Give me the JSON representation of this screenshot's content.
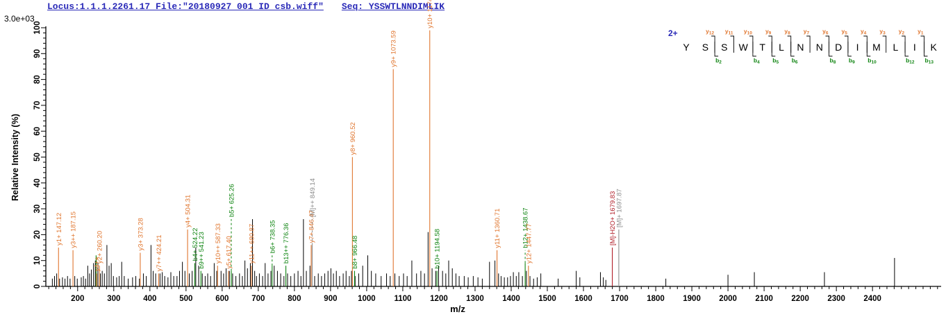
{
  "header": {
    "locus_file": "Locus:1.1.1.2261.17 File:\"20180927_001_ID_csb.wiff\"",
    "seq_label": "Seq: YSSWTLNNDIMLIK"
  },
  "colors": {
    "y_ion": "#e0762f",
    "b_ion": "#0e8410",
    "precursor": "#8c8c8c",
    "precursor_loss": "#b01e28",
    "header_blue": "#2929b8",
    "peak_black": "#000000",
    "axis": "#000000"
  },
  "peptide_panel": {
    "charge": "2+",
    "residues": [
      "Y",
      "S",
      "S",
      "W",
      "T",
      "L",
      "N",
      "N",
      "D",
      "I",
      "M",
      "L",
      "I",
      "K"
    ],
    "y_ions": [
      {
        "label": "y",
        "sub": "12",
        "after": 2
      },
      {
        "label": "y",
        "sub": "11",
        "after": 3
      },
      {
        "label": "y",
        "sub": "10",
        "after": 4
      },
      {
        "label": "y",
        "sub": "9",
        "after": 5
      },
      {
        "label": "y",
        "sub": "8",
        "after": 6
      },
      {
        "label": "y",
        "sub": "7",
        "after": 7
      },
      {
        "label": "y",
        "sub": "6",
        "after": 8
      },
      {
        "label": "y",
        "sub": "5",
        "after": 9
      },
      {
        "label": "y",
        "sub": "4",
        "after": 10
      },
      {
        "label": "y",
        "sub": "3",
        "after": 11
      },
      {
        "label": "y",
        "sub": "2",
        "after": 12
      },
      {
        "label": "y",
        "sub": "1",
        "after": 13
      }
    ],
    "b_ions": [
      {
        "label": "b",
        "sub": "2",
        "after": 2
      },
      {
        "label": "b",
        "sub": "4",
        "after": 4
      },
      {
        "label": "b",
        "sub": "5",
        "after": 5
      },
      {
        "label": "b",
        "sub": "6",
        "after": 6
      },
      {
        "label": "b",
        "sub": "8",
        "after": 8
      },
      {
        "label": "b",
        "sub": "9",
        "after": 9
      },
      {
        "label": "b",
        "sub": "10",
        "after": 10
      },
      {
        "label": "b",
        "sub": "12",
        "after": 12
      },
      {
        "label": "b",
        "sub": "13",
        "after": 13
      }
    ]
  },
  "chart_data": {
    "type": "bar",
    "title": "",
    "xlabel": "m/z",
    "ylabel": "Relative  Intensity (%)",
    "intensity_scale_label": "3.0e+03",
    "x_range": [
      112,
      2590
    ],
    "ylim": [
      0,
      100
    ],
    "x_major_tick_start": 200,
    "x_major_tick_end": 2400,
    "x_major_tick_step": 100,
    "x_minor_tick_step": 20,
    "y_major_tick_step": 10,
    "y_minor_tick_step": 2,
    "grid": "off",
    "labeled_peaks": [
      {
        "label": "y1+ 147.12",
        "mz": 147.12,
        "h": 15,
        "c": "y_ion"
      },
      {
        "label": "y3++ 187.15",
        "mz": 187.15,
        "h": 14,
        "c": "y_ion"
      },
      {
        "label": "",
        "mz": 251.1,
        "h": 12,
        "c": "b_ion"
      },
      {
        "label": "y4++",
        "mz": 252.64,
        "h": 5,
        "c": "y_ion"
      },
      {
        "label": "y2+ 260.20",
        "mz": 260.2,
        "h": 8,
        "c": "y_ion"
      },
      {
        "label": "y3+ 373.28",
        "mz": 373.28,
        "h": 13,
        "c": "y_ion"
      },
      {
        "label": "y7++ 424.21",
        "mz": 424.21,
        "h": 5,
        "c": "y_ion"
      },
      {
        "label": "y4+ 504.31",
        "mz": 504.31,
        "h": 22,
        "c": "y_ion"
      },
      {
        "label": "b4+ 524.22",
        "mz": 524.22,
        "h": 9,
        "c": "b_ion"
      },
      {
        "label": "b9++ 541.23",
        "mz": 541.23,
        "h": 6,
        "c": "b_ion"
      },
      {
        "label": "y10++ 587.33",
        "mz": 587.33,
        "h": 8,
        "c": "y_ion"
      },
      {
        "label": "y5+ 617.40",
        "mz": 617.4,
        "h": 6,
        "c": "y_ion"
      },
      {
        "label": "b5+ 625.26",
        "mz": 625.26,
        "h": 6,
        "th": 26,
        "c": "b_ion"
      },
      {
        "label": "y11++ 680.87",
        "mz": 680.87,
        "h": 8,
        "c": "y_ion"
      },
      {
        "label": "b6+ 738.35",
        "mz": 738.35,
        "h": 8,
        "th": 12,
        "c": "b_ion"
      },
      {
        "label": "b13++ 776.36",
        "mz": 776.36,
        "h": 8,
        "c": "b_ion"
      },
      {
        "label": "y7+ 846.47",
        "mz": 846.47,
        "h": 16,
        "c": "y_ion"
      },
      {
        "label": "[M]++ 849.14",
        "mz": 849.14,
        "h": 16,
        "th": 26,
        "c": "precursor"
      },
      {
        "label": "y8+ 960.52",
        "mz": 960.52,
        "h": 50,
        "c": "y_ion"
      },
      {
        "label": "b8+ 966.48",
        "mz": 966.48,
        "h": 6,
        "c": "b_ion"
      },
      {
        "label": "y9+ 1073.59",
        "mz": 1073.59,
        "h": 84,
        "c": "y_ion"
      },
      {
        "label": "y10+ 1174.6",
        "mz": 1174.6,
        "h": 99,
        "c": "y_ion"
      },
      {
        "label": "b10+ 1194.58",
        "mz": 1194.58,
        "h": 6,
        "c": "b_ion"
      },
      {
        "label": "y11+ 1360.71",
        "mz": 1360.71,
        "h": 14,
        "c": "y_ion"
      },
      {
        "label": "b12+ 1438.67",
        "mz": 1438.67,
        "h": 9,
        "th": 14,
        "c": "b_ion"
      },
      {
        "label": "y12+ 1447.77",
        "mz": 1447.77,
        "h": 8,
        "c": "y_ion"
      },
      {
        "label": "[M]-H2O+ 1679.83",
        "mz": 1679.83,
        "h": 15,
        "c": "precursor_loss"
      },
      {
        "label": "[M]+ 1697.87",
        "mz": 1697.87,
        "h": 22,
        "c": "precursor"
      }
    ],
    "unlabeled_peaks": [
      [
        130,
        3
      ],
      [
        136,
        4
      ],
      [
        142,
        5
      ],
      [
        150,
        3
      ],
      [
        158,
        3.5
      ],
      [
        165,
        3
      ],
      [
        172,
        4
      ],
      [
        179,
        3
      ],
      [
        192,
        4
      ],
      [
        199,
        3
      ],
      [
        210,
        3.5
      ],
      [
        216,
        4
      ],
      [
        222,
        3
      ],
      [
        228,
        8
      ],
      [
        233,
        5
      ],
      [
        238,
        6.5
      ],
      [
        244,
        9
      ],
      [
        249,
        10
      ],
      [
        256,
        9
      ],
      [
        263,
        5
      ],
      [
        268,
        6
      ],
      [
        274,
        5
      ],
      [
        281,
        16
      ],
      [
        287,
        8
      ],
      [
        293,
        9
      ],
      [
        299,
        4
      ],
      [
        308,
        3.5
      ],
      [
        315,
        4
      ],
      [
        322,
        9.5
      ],
      [
        329,
        4
      ],
      [
        340,
        3
      ],
      [
        352,
        3.5
      ],
      [
        361,
        4
      ],
      [
        371,
        3
      ],
      [
        382,
        5
      ],
      [
        390,
        4
      ],
      [
        403,
        16
      ],
      [
        409,
        6
      ],
      [
        416,
        5
      ],
      [
        428,
        5
      ],
      [
        434,
        5.5
      ],
      [
        441,
        4
      ],
      [
        450,
        3.5
      ],
      [
        458,
        5.5
      ],
      [
        466,
        4
      ],
      [
        475,
        4
      ],
      [
        482,
        6
      ],
      [
        490,
        9.5
      ],
      [
        497,
        6
      ],
      [
        509,
        5
      ],
      [
        517,
        6
      ],
      [
        527,
        15
      ],
      [
        535,
        8
      ],
      [
        545,
        5
      ],
      [
        553,
        4
      ],
      [
        560,
        5
      ],
      [
        568,
        4
      ],
      [
        578,
        9
      ],
      [
        585,
        6
      ],
      [
        597,
        6
      ],
      [
        604,
        5
      ],
      [
        611,
        7
      ],
      [
        620,
        6
      ],
      [
        629,
        5
      ],
      [
        638,
        4
      ],
      [
        648,
        5
      ],
      [
        656,
        4
      ],
      [
        663,
        10
      ],
      [
        670,
        7
      ],
      [
        678,
        9
      ],
      [
        684,
        26
      ],
      [
        690,
        6
      ],
      [
        695,
        4
      ],
      [
        703,
        5
      ],
      [
        712,
        4
      ],
      [
        719,
        9
      ],
      [
        727,
        5
      ],
      [
        735,
        6
      ],
      [
        744,
        8
      ],
      [
        753,
        6
      ],
      [
        762,
        5
      ],
      [
        771,
        4
      ],
      [
        781,
        5
      ],
      [
        790,
        4
      ],
      [
        800,
        5
      ],
      [
        810,
        6
      ],
      [
        818,
        4
      ],
      [
        825,
        26
      ],
      [
        833,
        6
      ],
      [
        843,
        8
      ],
      [
        856,
        4
      ],
      [
        866,
        5
      ],
      [
        875,
        4
      ],
      [
        884,
        5
      ],
      [
        893,
        6
      ],
      [
        901,
        7
      ],
      [
        908,
        5
      ],
      [
        916,
        6
      ],
      [
        925,
        4
      ],
      [
        935,
        5
      ],
      [
        943,
        6
      ],
      [
        952,
        4
      ],
      [
        958,
        6
      ],
      [
        968,
        4
      ],
      [
        978,
        5
      ],
      [
        989,
        8
      ],
      [
        1003,
        12
      ],
      [
        1013,
        6
      ],
      [
        1025,
        5
      ],
      [
        1040,
        4
      ],
      [
        1055,
        5
      ],
      [
        1065,
        4
      ],
      [
        1078,
        5
      ],
      [
        1090,
        4
      ],
      [
        1102,
        5
      ],
      [
        1112,
        4
      ],
      [
        1125,
        10
      ],
      [
        1138,
        5
      ],
      [
        1150,
        6
      ],
      [
        1160,
        5
      ],
      [
        1170,
        21
      ],
      [
        1181,
        7
      ],
      [
        1191,
        6
      ],
      [
        1199,
        8
      ],
      [
        1210,
        6
      ],
      [
        1219,
        5
      ],
      [
        1227,
        10
      ],
      [
        1237,
        7
      ],
      [
        1247,
        5
      ],
      [
        1256,
        4
      ],
      [
        1270,
        4
      ],
      [
        1281,
        3.5
      ],
      [
        1295,
        4
      ],
      [
        1308,
        3.5
      ],
      [
        1320,
        3
      ],
      [
        1340,
        9.5
      ],
      [
        1355,
        10
      ],
      [
        1365,
        5
      ],
      [
        1372,
        4
      ],
      [
        1381,
        3.5
      ],
      [
        1390,
        3.5
      ],
      [
        1398,
        4
      ],
      [
        1406,
        5.5
      ],
      [
        1414,
        4
      ],
      [
        1421,
        5.5
      ],
      [
        1431,
        4
      ],
      [
        1442,
        6
      ],
      [
        1452,
        4
      ],
      [
        1462,
        3
      ],
      [
        1472,
        3.5
      ],
      [
        1482,
        5
      ],
      [
        1530,
        3
      ],
      [
        1580,
        6
      ],
      [
        1590,
        3.5
      ],
      [
        1647,
        5.5
      ],
      [
        1655,
        3.5
      ],
      [
        1662,
        2.5
      ],
      [
        1828,
        3
      ],
      [
        2000,
        4.5
      ],
      [
        2073,
        5.5
      ],
      [
        2267,
        5.5
      ],
      [
        2461,
        11
      ]
    ]
  }
}
